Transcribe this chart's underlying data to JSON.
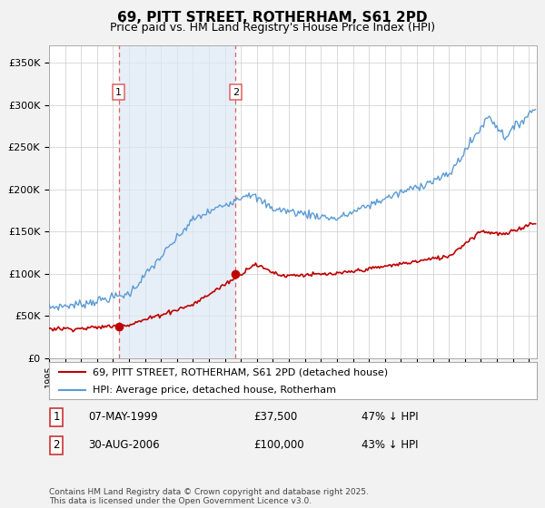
{
  "title": "69, PITT STREET, ROTHERHAM, S61 2PD",
  "subtitle": "Price paid vs. HM Land Registry's House Price Index (HPI)",
  "legend_line1": "69, PITT STREET, ROTHERHAM, S61 2PD (detached house)",
  "legend_line2": "HPI: Average price, detached house, Rotherham",
  "sale1_date": "07-MAY-1999",
  "sale1_price": "£37,500",
  "sale1_hpi": "47% ↓ HPI",
  "sale1_year": 1999.35,
  "sale1_value": 37500,
  "sale2_date": "30-AUG-2006",
  "sale2_price": "£100,000",
  "sale2_hpi": "43% ↓ HPI",
  "sale2_year": 2006.66,
  "sale2_value": 100000,
  "hpi_color": "#5b9bd5",
  "price_color": "#c00000",
  "vline_color": "#e06060",
  "shade_color": "#dce8f5",
  "background_color": "#f2f2f2",
  "plot_bg_color": "#ffffff",
  "legend_bg": "#ffffff",
  "ylim": [
    0,
    370000
  ],
  "yticks": [
    0,
    50000,
    100000,
    150000,
    200000,
    250000,
    300000,
    350000
  ],
  "xlim_start": 1995,
  "xlim_end": 2025.5,
  "footer": "Contains HM Land Registry data © Crown copyright and database right 2025.\nThis data is licensed under the Open Government Licence v3.0.",
  "title_fontsize": 11,
  "subtitle_fontsize": 9,
  "axis_fontsize": 8,
  "label_fontsize": 8.5
}
